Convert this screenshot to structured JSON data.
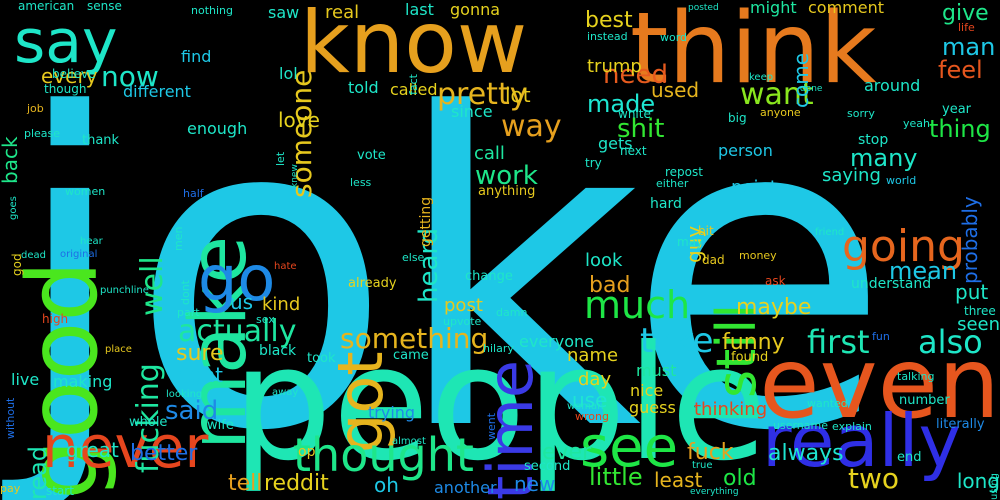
{
  "words": [
    {
      "text": "joke",
      "color": "#1ec8e6"
    },
    {
      "text": "people",
      "color": "#1ee6b4"
    },
    {
      "text": "know",
      "color": "#e6a01e"
    },
    {
      "text": "think",
      "color": "#e67a1e"
    },
    {
      "text": "make",
      "color": "#1ee6a0"
    },
    {
      "text": "good",
      "color": "#4ae61e"
    },
    {
      "text": "even",
      "color": "#e6561e"
    },
    {
      "text": "really",
      "color": "#2f2fe6"
    },
    {
      "text": "time",
      "color": "#3a3ae6"
    },
    {
      "text": "got",
      "color": "#e6b41e"
    },
    {
      "text": "go",
      "color": "#1e8ae6"
    },
    {
      "text": "still",
      "color": "#32e632"
    },
    {
      "text": "going",
      "color": "#e6661e"
    },
    {
      "text": "say",
      "color": "#1ee6c8"
    },
    {
      "text": "never",
      "color": "#e6461e"
    },
    {
      "text": "see",
      "color": "#1ee646"
    },
    {
      "text": "thought",
      "color": "#1ee68a"
    },
    {
      "text": "much",
      "color": "#1ee646"
    },
    {
      "text": "first",
      "color": "#1ee6b4"
    },
    {
      "text": "also",
      "color": "#1ee6c8"
    },
    {
      "text": "take",
      "color": "#1ec8e6"
    },
    {
      "text": "two",
      "color": "#e6d21e"
    },
    {
      "text": "want",
      "color": "#8ae61e"
    },
    {
      "text": "way",
      "color": "#e6a01e"
    },
    {
      "text": "pretty",
      "color": "#e6b41e"
    },
    {
      "text": "fucking",
      "color": "#1ee6a0"
    },
    {
      "text": "well",
      "color": "#1ee68a"
    },
    {
      "text": "actually",
      "color": "#1ee6a0"
    },
    {
      "text": "something",
      "color": "#e6b41e"
    },
    {
      "text": "someone",
      "color": "#e6c81e"
    },
    {
      "text": "now",
      "color": "#1ee6c8"
    },
    {
      "text": "need",
      "color": "#e65a1e"
    },
    {
      "text": "made",
      "color": "#1ee6d2"
    },
    {
      "text": "shit",
      "color": "#32e632"
    },
    {
      "text": "work",
      "color": "#1ee68a"
    },
    {
      "text": "heard",
      "color": "#1ee6c8"
    },
    {
      "text": "said",
      "color": "#1e8ae6"
    },
    {
      "text": "man",
      "color": "#1ec8e6"
    },
    {
      "text": "feel",
      "color": "#e6561e"
    },
    {
      "text": "thing",
      "color": "#1ee646"
    },
    {
      "text": "many",
      "color": "#1ee6c8"
    },
    {
      "text": "mean",
      "color": "#1ec8e6"
    },
    {
      "text": "funny",
      "color": "#e6c81e"
    },
    {
      "text": "fuck",
      "color": "#e6a01e"
    },
    {
      "text": "maybe",
      "color": "#e6d21e"
    },
    {
      "text": "sure",
      "color": "#e6c81e"
    },
    {
      "text": "better",
      "color": "#1e6ee6"
    },
    {
      "text": "great",
      "color": "#1ee6c8"
    },
    {
      "text": "tell",
      "color": "#e6a01e"
    },
    {
      "text": "reddit",
      "color": "#e6d21e"
    },
    {
      "text": "oh",
      "color": "#1ec8e6"
    },
    {
      "text": "always",
      "color": "#1ee6d2"
    },
    {
      "text": "old",
      "color": "#1ee646"
    },
    {
      "text": "little",
      "color": "#32e632"
    },
    {
      "text": "new",
      "color": "#1e8ae6"
    },
    {
      "text": "ever",
      "color": "#1ee6a0"
    },
    {
      "text": "least",
      "color": "#e6b41e"
    },
    {
      "text": "read",
      "color": "#1ee6b4"
    },
    {
      "text": "bad",
      "color": "#e6a01e"
    },
    {
      "text": "look",
      "color": "#1ee6c8"
    },
    {
      "text": "post",
      "color": "#e6c81e"
    },
    {
      "text": "love",
      "color": "#e6d21e"
    },
    {
      "text": "best",
      "color": "#e6d21e"
    },
    {
      "text": "trump",
      "color": "#e6d21e"
    },
    {
      "text": "used",
      "color": "#e6b41e"
    },
    {
      "text": "call",
      "color": "#1ee6a0"
    },
    {
      "text": "lot",
      "color": "#e6c81e"
    },
    {
      "text": "give",
      "color": "#1ee68a"
    },
    {
      "text": "come",
      "color": "#1ec8e6"
    },
    {
      "text": "back",
      "color": "#1ee68a"
    },
    {
      "text": "every",
      "color": "#e6c81e"
    },
    {
      "text": "us",
      "color": "#1ec8e6"
    },
    {
      "text": "right",
      "color": "#1ec8e6"
    },
    {
      "text": "kind",
      "color": "#e6c81e"
    },
    {
      "text": "probably",
      "color": "#1e6ee6"
    },
    {
      "text": "put",
      "color": "#1ee6c8"
    },
    {
      "text": "long",
      "color": "#1ee6c8"
    },
    {
      "text": "seen",
      "color": "#1ee6c8"
    },
    {
      "text": "guy",
      "color": "#e6d21e"
    },
    {
      "text": "use",
      "color": "#1ee6d2"
    },
    {
      "text": "day",
      "color": "#e6d21e"
    },
    {
      "text": "must",
      "color": "#1ee6a0"
    },
    {
      "text": "nice",
      "color": "#e6d21e"
    },
    {
      "text": "guess",
      "color": "#e6d21e"
    },
    {
      "text": "thinking",
      "color": "#e6461e"
    },
    {
      "text": "name",
      "color": "#e6d21e"
    },
    {
      "text": "everyone",
      "color": "#1ee6c8"
    },
    {
      "text": "saying",
      "color": "#1ee6c8"
    },
    {
      "text": "point",
      "color": "#1ec8e6"
    },
    {
      "text": "person",
      "color": "#1ec8e6"
    },
    {
      "text": "around",
      "color": "#1ee6c8"
    },
    {
      "text": "comment",
      "color": "#e6c81e"
    },
    {
      "text": "might",
      "color": "#1ee6a0"
    },
    {
      "text": "real",
      "color": "#e6c81e"
    },
    {
      "text": "saw",
      "color": "#1ee6c8"
    },
    {
      "text": "last",
      "color": "#1ee6c8"
    },
    {
      "text": "gonna",
      "color": "#e6d21e"
    },
    {
      "text": "lol",
      "color": "#1ee6c8"
    },
    {
      "text": "find",
      "color": "#1ec8e6"
    },
    {
      "text": "different",
      "color": "#1ec8e6"
    },
    {
      "text": "told",
      "color": "#1ee6c8"
    },
    {
      "text": "called",
      "color": "#e6d21e"
    },
    {
      "text": "since",
      "color": "#1ee6c8"
    },
    {
      "text": "gets",
      "color": "#1ee6c8"
    },
    {
      "text": "enough",
      "color": "#1ee6c8"
    },
    {
      "text": "anything",
      "color": "#e6c81e"
    },
    {
      "text": "getting",
      "color": "#e6b41e"
    },
    {
      "text": "making",
      "color": "#1ee6c8"
    },
    {
      "text": "live",
      "color": "#1ee6c8"
    },
    {
      "text": "stop",
      "color": "#1ee6c8"
    },
    {
      "text": "hard",
      "color": "#1ee6c8"
    },
    {
      "text": "understand",
      "color": "#1ee6c8"
    },
    {
      "text": "black",
      "color": "#1ee6c8"
    },
    {
      "text": "trying",
      "color": "#1e8ae6"
    },
    {
      "text": "came",
      "color": "#1ee6c8"
    },
    {
      "text": "took",
      "color": "#1ee6c8"
    },
    {
      "text": "found",
      "color": "#e6d21e"
    },
    {
      "text": "another",
      "color": "#1e8ae6"
    },
    {
      "text": "second",
      "color": "#1ee6c8"
    },
    {
      "text": "start",
      "color": "#1ee6c8"
    },
    {
      "text": "op",
      "color": "#e6c81e"
    },
    {
      "text": "whole",
      "color": "#1ee6c8"
    },
    {
      "text": "wife",
      "color": "#1ee6c8"
    },
    {
      "text": "number",
      "color": "#1ee6c8"
    },
    {
      "text": "year",
      "color": "#1ee6c8"
    },
    {
      "text": "three",
      "color": "#1ee6c8"
    },
    {
      "text": "literally",
      "color": "#1e8ae6"
    },
    {
      "text": "end",
      "color": "#1ee6c8"
    },
    {
      "text": "world",
      "color": "#1ec8e6"
    },
    {
      "text": "money",
      "color": "#e6c81e"
    },
    {
      "text": "vote",
      "color": "#1ee6c8"
    },
    {
      "text": "hilary",
      "color": "#1ee6c8"
    },
    {
      "text": "damn",
      "color": "#1ee6c8"
    },
    {
      "text": "change",
      "color": "#1ee6c8"
    },
    {
      "text": "already",
      "color": "#e6d21e"
    },
    {
      "text": "thank",
      "color": "#1ee6c8"
    },
    {
      "text": "though",
      "color": "#1ee6c8"
    },
    {
      "text": "believe",
      "color": "#1ee6c8"
    },
    {
      "text": "american",
      "color": "#1ee6c8"
    },
    {
      "text": "sense",
      "color": "#1ee6c8"
    },
    {
      "text": "nothing",
      "color": "#1ee6c8"
    },
    {
      "text": "please",
      "color": "#1ee6c8"
    },
    {
      "text": "job",
      "color": "#e6b41e"
    },
    {
      "text": "women",
      "color": "#1ee6c8"
    },
    {
      "text": "half",
      "color": "#1e6ee6"
    },
    {
      "text": "god",
      "color": "#e6d21e"
    },
    {
      "text": "pay",
      "color": "#e6c81e"
    },
    {
      "text": "without",
      "color": "#1e6ee6"
    },
    {
      "text": "high",
      "color": "#e6461e"
    },
    {
      "text": "place",
      "color": "#e6c81e"
    },
    {
      "text": "looking",
      "color": "#1ee6c8"
    },
    {
      "text": "away",
      "color": "#1ee6c8"
    },
    {
      "text": "part",
      "color": "#1ee6c8"
    },
    {
      "text": "sex",
      "color": "#1ee6c8"
    },
    {
      "text": "dont",
      "color": "#1ee6c8"
    },
    {
      "text": "men",
      "color": "#1ee6c8"
    },
    {
      "text": "let",
      "color": "#1ee6c8"
    },
    {
      "text": "knew",
      "color": "#1ee6c8"
    },
    {
      "text": "less",
      "color": "#1ee6c8"
    },
    {
      "text": "else",
      "color": "#1ee6c8"
    },
    {
      "text": "upvote",
      "color": "#1ee6c8"
    },
    {
      "text": "went",
      "color": "#1e6ee6"
    },
    {
      "text": "almost",
      "color": "#1ee6c8"
    },
    {
      "text": "woman",
      "color": "#1ee6c8"
    },
    {
      "text": "wrong",
      "color": "#e6461e"
    },
    {
      "text": "explain",
      "color": "#1ee6c8"
    },
    {
      "text": "username",
      "color": "#1ee6c8"
    },
    {
      "text": "wanted",
      "color": "#1ee6c8"
    },
    {
      "text": "talking",
      "color": "#1ee6c8"
    },
    {
      "text": "fun",
      "color": "#1e6ee6"
    },
    {
      "text": "friend",
      "color": "#1ee6c8"
    },
    {
      "text": "ask",
      "color": "#e6461e"
    },
    {
      "text": "dad",
      "color": "#e6c81e"
    },
    {
      "text": "bit",
      "color": "#e6c81e"
    },
    {
      "text": "may",
      "color": "#1ee6c8"
    },
    {
      "text": "either",
      "color": "#1ee6c8"
    },
    {
      "text": "repost",
      "color": "#1ee6c8"
    },
    {
      "text": "try",
      "color": "#1ee6c8"
    },
    {
      "text": "next",
      "color": "#1ee6c8"
    },
    {
      "text": "white",
      "color": "#1ee6c8"
    },
    {
      "text": "big",
      "color": "#1ee6c8"
    },
    {
      "text": "anyone",
      "color": "#e6c81e"
    },
    {
      "text": "sorry",
      "color": "#1ee6c8"
    },
    {
      "text": "done",
      "color": "#1ee6c8"
    },
    {
      "text": "keep",
      "color": "#1ee6c8"
    },
    {
      "text": "yeah",
      "color": "#1ee6c8"
    },
    {
      "text": "life",
      "color": "#e6461e"
    },
    {
      "text": "fact",
      "color": "#1ee6c8"
    },
    {
      "text": "instead",
      "color": "#1ee6c8"
    },
    {
      "text": "posted",
      "color": "#1ee6c8"
    },
    {
      "text": "word",
      "color": "#1ee6c8"
    },
    {
      "text": "hate",
      "color": "#e6461e"
    },
    {
      "text": "punchline",
      "color": "#1ee6c8"
    },
    {
      "text": "hear",
      "color": "#1ee6c8"
    },
    {
      "text": "dead",
      "color": "#1ee6c8"
    },
    {
      "text": "original",
      "color": "#1e6ee6"
    },
    {
      "text": "goes",
      "color": "#1ee6c8"
    },
    {
      "text": "using",
      "color": "#1ee6c8"
    },
    {
      "text": "everything",
      "color": "#1ee6c8"
    },
    {
      "text": "true",
      "color": "#1ee6c8"
    }
  ]
}
